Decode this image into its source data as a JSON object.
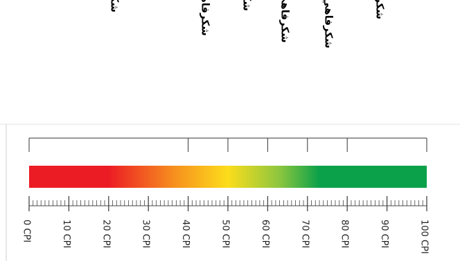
{
  "scale": {
    "min": 0,
    "max": 100,
    "unit_suffix": " CPI",
    "tick_labels": [
      "0 CPI",
      "10 CPI",
      "20 CPI",
      "30 CPI",
      "40 CPI",
      "50 CPI",
      "60 CPI",
      "70 CPI",
      "80 CPI",
      "90 CPI",
      "100 CPI"
    ],
    "bands": [
      {
        "label": "شكرفاهي بسيار ضعيف",
        "from": 0,
        "to": 40
      },
      {
        "label": "شكرفاهي ضعيف",
        "from": 40,
        "to": 50
      },
      {
        "label": "شكرفاهي نسبتا ضعيف",
        "from": 50,
        "to": 60
      },
      {
        "label": "شكرفاهي نسبي",
        "from": 60,
        "to": 70
      },
      {
        "label": "شكرفاهي قوي",
        "from": 70,
        "to": 80
      },
      {
        "label": "شكرفاهي بسيار قوي",
        "from": 80,
        "to": 100
      }
    ],
    "gradient_colors": [
      "#ec1c24",
      "#ec1c24",
      "#f7931e",
      "#fcdd1c",
      "#8cc63f",
      "#0aa14a",
      "#0aa14a"
    ]
  }
}
